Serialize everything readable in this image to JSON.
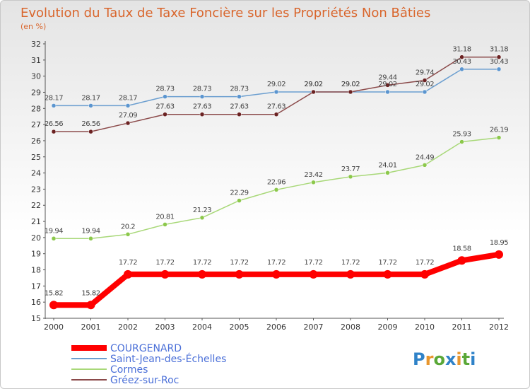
{
  "chart_data": {
    "type": "line",
    "title": "Evolution du Taux de Taxe Foncière sur les Propriétés Non Bâties",
    "ylabel": "(en %)",
    "xlabel": "",
    "ylim": [
      15,
      32
    ],
    "yticks": [
      15,
      16,
      17,
      18,
      19,
      20,
      21,
      22,
      23,
      24,
      25,
      26,
      27,
      28,
      29,
      30,
      31,
      32
    ],
    "categories": [
      "2000",
      "2001",
      "2002",
      "2003",
      "2004",
      "2005",
      "2006",
      "2007",
      "2008",
      "2009",
      "2010",
      "2011",
      "2012"
    ],
    "grid": false,
    "legend_position": "bottom-left",
    "series": [
      {
        "name": "Saint-Jean-des-Échelles",
        "color": "#6c9fd0",
        "marker": "#5b95cf",
        "values": [
          28.17,
          28.17,
          28.17,
          28.73,
          28.73,
          28.73,
          29.02,
          29.02,
          29.02,
          29.02,
          29.02,
          30.43,
          30.43
        ]
      },
      {
        "name": "Cormes",
        "color": "#a8d878",
        "marker": "#8cc84b",
        "values": [
          19.94,
          19.94,
          20.2,
          20.81,
          21.23,
          22.29,
          22.96,
          23.42,
          23.77,
          24.01,
          24.49,
          25.93,
          26.19
        ]
      },
      {
        "name": "Gréez-sur-Roc",
        "color": "#8b4a4a",
        "marker": "#6b2222",
        "values": [
          26.56,
          26.56,
          27.09,
          27.63,
          27.63,
          27.63,
          27.63,
          29.02,
          29.02,
          29.44,
          29.74,
          31.18,
          31.18
        ]
      },
      {
        "name": "COURGENARD",
        "color": "#ff0000",
        "marker": "#ff0000",
        "values": [
          15.82,
          15.82,
          17.72,
          17.72,
          17.72,
          17.72,
          17.72,
          17.72,
          17.72,
          17.72,
          17.72,
          18.58,
          18.95
        ]
      }
    ]
  },
  "legend": [
    {
      "label": "COURGENARD",
      "color": "#ff0000",
      "text_color": "#4a6fd8"
    },
    {
      "label": "Saint-Jean-des-Échelles",
      "color": "#6c9fd0",
      "text_color": "#4a6fd8"
    },
    {
      "label": "Cormes",
      "color": "#a8d878",
      "text_color": "#4a6fd8"
    },
    {
      "label": "Gréez-sur-Roc",
      "color": "#8b4a4a",
      "text_color": "#4a6fd8"
    }
  ],
  "logo": {
    "letters": [
      "P",
      "r",
      "o",
      "x",
      "i",
      "t",
      "i"
    ],
    "colors": [
      "#2f82c8",
      "#e8962e",
      "#5aa838",
      "#2f82c8",
      "#e8962e",
      "#5aa838",
      "#2f82c8"
    ]
  }
}
